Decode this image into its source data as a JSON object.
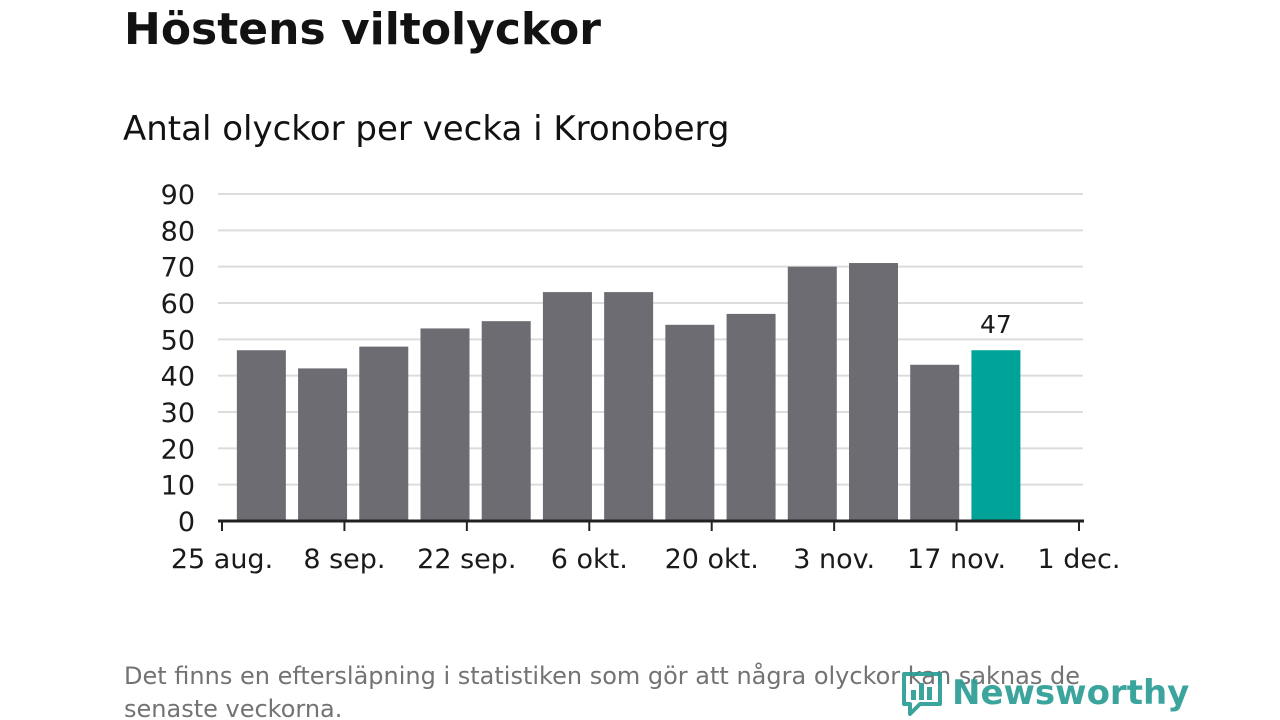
{
  "title": "Höstens viltolyckor",
  "subtitle": "Antal olyckor per vecka i Kronoberg",
  "footnote": "Det finns en eftersläpning i statistiken som gör att några olyckor kan saknas de senaste veckorna.",
  "logo": {
    "text": "Newsworthy",
    "icon": "newsworthy-bar-chart-logo-icon",
    "color": "#2a9d95"
  },
  "colors": {
    "bar": "#6d6c72",
    "highlight": "#00a398",
    "grid": "#dcdcdc",
    "axis": "#222222",
    "text": "#1a1a1a"
  },
  "chart_data": {
    "type": "bar",
    "x_tick_labels": [
      "25 aug.",
      "8 sep.",
      "22 sep.",
      "6 okt.",
      "20 okt.",
      "3 nov.",
      "17 nov.",
      "1 dec."
    ],
    "bars": [
      {
        "week_start": "2019-08-26",
        "value": 47
      },
      {
        "week_start": "2019-09-02",
        "value": 42
      },
      {
        "week_start": "2019-09-09",
        "value": 48
      },
      {
        "week_start": "2019-09-16",
        "value": 53
      },
      {
        "week_start": "2019-09-23",
        "value": 55
      },
      {
        "week_start": "2019-09-30",
        "value": 63
      },
      {
        "week_start": "2019-10-07",
        "value": 63
      },
      {
        "week_start": "2019-10-14",
        "value": 54
      },
      {
        "week_start": "2019-10-21",
        "value": 57
      },
      {
        "week_start": "2019-10-28",
        "value": 70
      },
      {
        "week_start": "2019-11-04",
        "value": 71
      },
      {
        "week_start": "2019-11-11",
        "value": 43
      },
      {
        "week_start": "2019-11-18",
        "value": 47,
        "highlight": true,
        "label": "47"
      }
    ],
    "y_ticks": [
      0,
      10,
      20,
      30,
      40,
      50,
      60,
      70,
      80,
      90
    ],
    "ylim": [
      0,
      90
    ],
    "grid": true
  }
}
